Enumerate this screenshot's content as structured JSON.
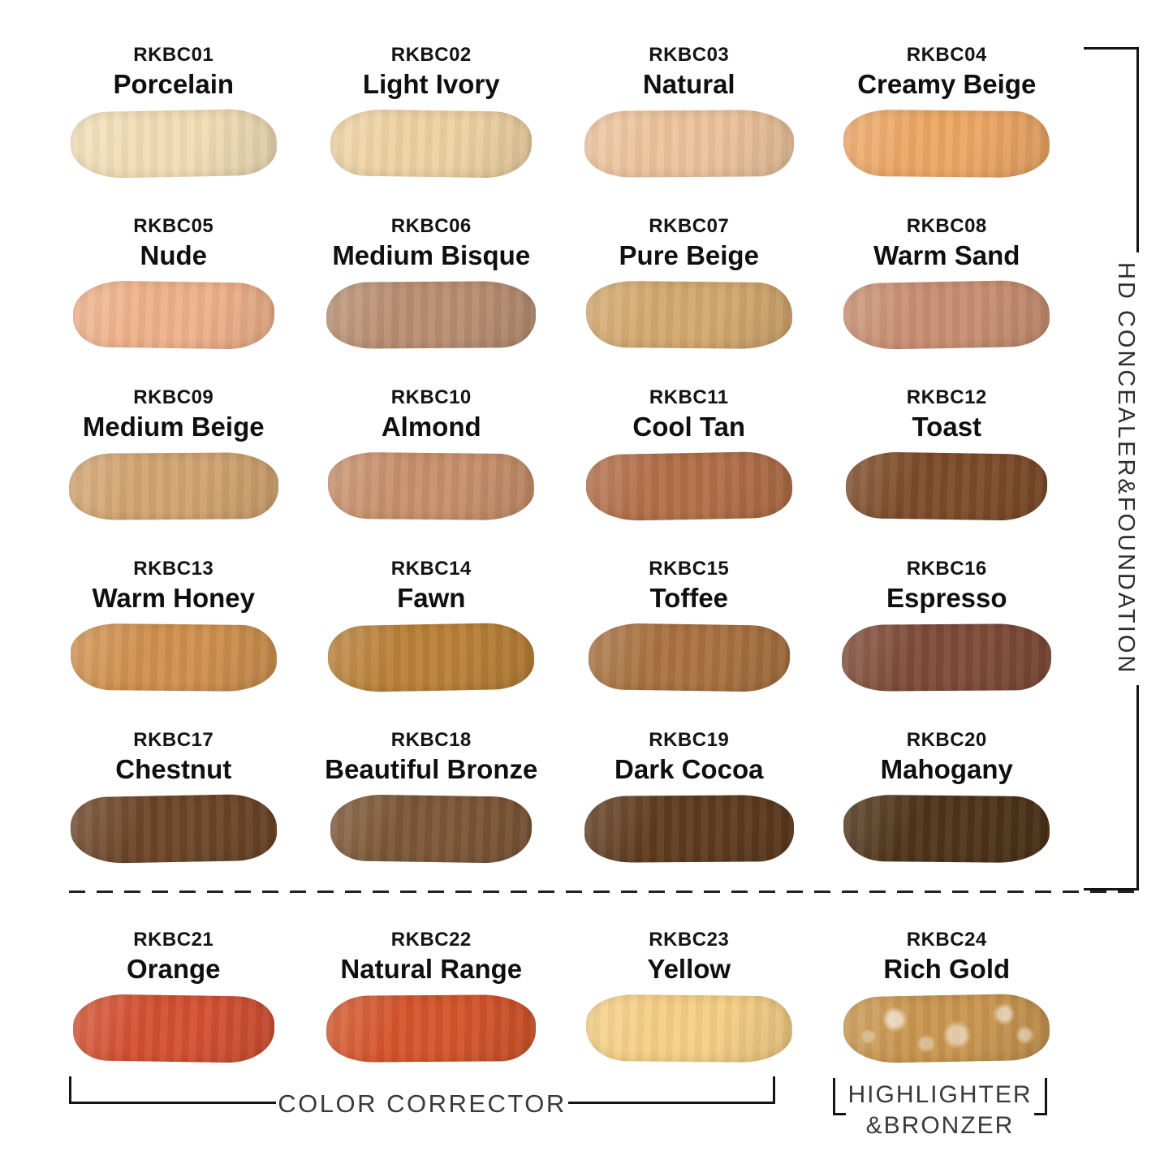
{
  "sections": {
    "hd_label": "HD CONCEALER&FOUNDATION",
    "corrector_label": "COLOR CORRECTOR",
    "highlighter_line1": "HIGHLIGHTER",
    "highlighter_line2": "&BRONZER"
  },
  "swatches": [
    {
      "code": "RKBC01",
      "name": "Porcelain",
      "color": "#f2ddb6"
    },
    {
      "code": "RKBC02",
      "name": "Light Ivory",
      "color": "#eed2a2"
    },
    {
      "code": "RKBC03",
      "name": "Natural",
      "color": "#ecc39c"
    },
    {
      "code": "RKBC04",
      "name": "Creamy Beige",
      "color": "#eca765"
    },
    {
      "code": "RKBC05",
      "name": "Nude",
      "color": "#efb28b"
    },
    {
      "code": "RKBC06",
      "name": "Medium Bisque",
      "color": "#b98f72"
    },
    {
      "code": "RKBC07",
      "name": "Pure Beige",
      "color": "#d3a86e"
    },
    {
      "code": "RKBC08",
      "name": "Warm Sand",
      "color": "#c98f72"
    },
    {
      "code": "RKBC09",
      "name": "Medium Beige",
      "color": "#d2a471"
    },
    {
      "code": "RKBC10",
      "name": "Almond",
      "color": "#c8906b"
    },
    {
      "code": "RKBC11",
      "name": "Cool Tan",
      "color": "#b26f48"
    },
    {
      "code": "RKBC12",
      "name": "Toast",
      "color": "#7e4c29"
    },
    {
      "code": "RKBC13",
      "name": "Warm Honey",
      "color": "#d0914f"
    },
    {
      "code": "RKBC14",
      "name": "Fawn",
      "color": "#ba8138"
    },
    {
      "code": "RKBC15",
      "name": "Toffee",
      "color": "#a97242"
    },
    {
      "code": "RKBC16",
      "name": "Espresso",
      "color": "#7f4b39"
    },
    {
      "code": "RKBC17",
      "name": "Chestnut",
      "color": "#6d4628"
    },
    {
      "code": "RKBC18",
      "name": "Beautiful Bronze",
      "color": "#7d5737"
    },
    {
      "code": "RKBC19",
      "name": "Dark Cocoa",
      "color": "#5f3c1f"
    },
    {
      "code": "RKBC20",
      "name": "Mahogany",
      "color": "#4f341a"
    },
    {
      "code": "RKBC21",
      "name": "Orange",
      "color": "#d35133"
    },
    {
      "code": "RKBC22",
      "name": "Natural Range",
      "color": "#d4552b"
    },
    {
      "code": "RKBC23",
      "name": "Yellow",
      "color": "#f5cf85"
    },
    {
      "code": "RKBC24",
      "name": "Rich Gold",
      "color": "#c9964f",
      "shimmer": true
    }
  ]
}
